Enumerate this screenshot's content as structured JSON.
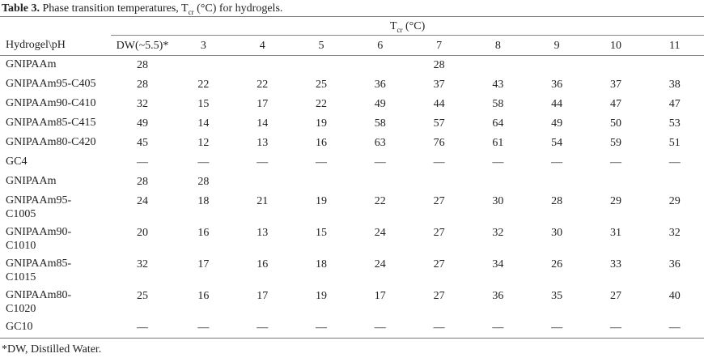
{
  "caption": {
    "label": "Table 3.",
    "text_before": " Phase transition temperatures, T",
    "sub": "cr",
    "text_after": " (°C) for hydrogels."
  },
  "group_header": {
    "main": "T",
    "sub": "cr",
    "unit": " (°C)"
  },
  "columns": [
    "Hydrogel\\pH",
    "DW(~5.5)*",
    "3",
    "4",
    "5",
    "6",
    "7",
    "8",
    "9",
    "10",
    "11"
  ],
  "rows": [
    {
      "name": "GNIPAAm",
      "values": [
        "28",
        "",
        "",
        "",
        "",
        "28",
        "",
        "",
        "",
        ""
      ]
    },
    {
      "name": "GNIPAAm95-C405",
      "values": [
        "28",
        "22",
        "22",
        "25",
        "36",
        "37",
        "43",
        "36",
        "37",
        "38"
      ]
    },
    {
      "name": "GNIPAAm90-C410",
      "values": [
        "32",
        "15",
        "17",
        "22",
        "49",
        "44",
        "58",
        "44",
        "47",
        "47"
      ]
    },
    {
      "name": "GNIPAAm85-C415",
      "values": [
        "49",
        "14",
        "14",
        "19",
        "58",
        "57",
        "64",
        "49",
        "50",
        "53"
      ]
    },
    {
      "name": "GNIPAAm80-C420",
      "values": [
        "45",
        "12",
        "13",
        "16",
        "63",
        "76",
        "61",
        "54",
        "59",
        "51"
      ]
    },
    {
      "name": "GC4",
      "values": [
        "—",
        "—",
        "—",
        "—",
        "—",
        "—",
        "—",
        "—",
        "—",
        "—"
      ]
    },
    {
      "name": "GNIPAAm",
      "values": [
        "28",
        "28",
        "",
        "",
        "",
        "",
        "",
        "",
        "",
        ""
      ]
    },
    {
      "name": "GNIPAAm95-\nC1005",
      "values": [
        "24",
        "18",
        "21",
        "19",
        "22",
        "27",
        "30",
        "28",
        "29",
        "29"
      ]
    },
    {
      "name": "GNIPAAm90-\nC1010",
      "values": [
        "20",
        "16",
        "13",
        "15",
        "24",
        "27",
        "32",
        "30",
        "31",
        "32"
      ]
    },
    {
      "name": "GNIPAAm85-\nC1015",
      "values": [
        "32",
        "17",
        "16",
        "18",
        "24",
        "27",
        "34",
        "26",
        "33",
        "36"
      ]
    },
    {
      "name": "GNIPAAm80-\nC1020",
      "values": [
        "25",
        "16",
        "17",
        "19",
        "17",
        "27",
        "36",
        "35",
        "27",
        "40"
      ]
    },
    {
      "name": "GC10",
      "values": [
        "—",
        "—",
        "—",
        "—",
        "—",
        "—",
        "—",
        "—",
        "—",
        "—"
      ]
    }
  ],
  "footnote": "*DW, Distilled Water."
}
